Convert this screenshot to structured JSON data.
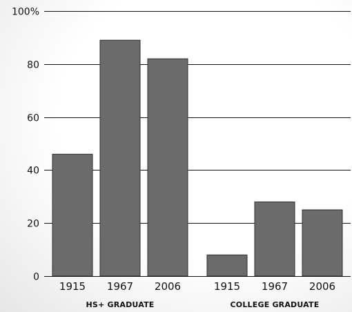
{
  "chart_data": {
    "type": "bar",
    "title": "",
    "xlabel": "",
    "ylabel": "",
    "ylim": [
      0,
      100
    ],
    "yticks": [
      "0",
      "20",
      "40",
      "60",
      "80",
      "100%"
    ],
    "grid": true,
    "legend": "none",
    "groups": [
      {
        "name": "HS+ GRADUATE",
        "categories": [
          "1915",
          "1967",
          "2006"
        ],
        "values": [
          46,
          89,
          82
        ]
      },
      {
        "name": "COLLEGE GRADUATE",
        "categories": [
          "1915",
          "1967",
          "2006"
        ],
        "values": [
          8,
          28,
          25
        ]
      }
    ],
    "colors": {
      "bar": "#6b6b6b",
      "bar_edge": "#2f2f2f",
      "grid": "#111111",
      "text": "#111111"
    }
  }
}
